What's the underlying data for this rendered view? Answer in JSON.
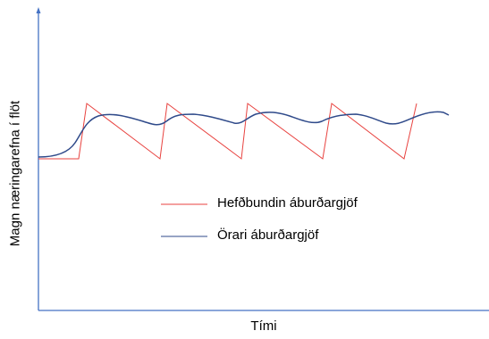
{
  "chart_data": {
    "type": "line",
    "ylabel": "Magn næringarefna í flöt",
    "xlabel": "Tími",
    "colors": {
      "axis": "#4472c4",
      "conventional": "#e8423f",
      "slow": "#2f4a8a"
    },
    "series": [
      {
        "name": "Hefðbundin áburðargjöf",
        "style": "sawtooth"
      },
      {
        "name": "Örari áburðargjöf",
        "style": "smooth"
      }
    ]
  }
}
